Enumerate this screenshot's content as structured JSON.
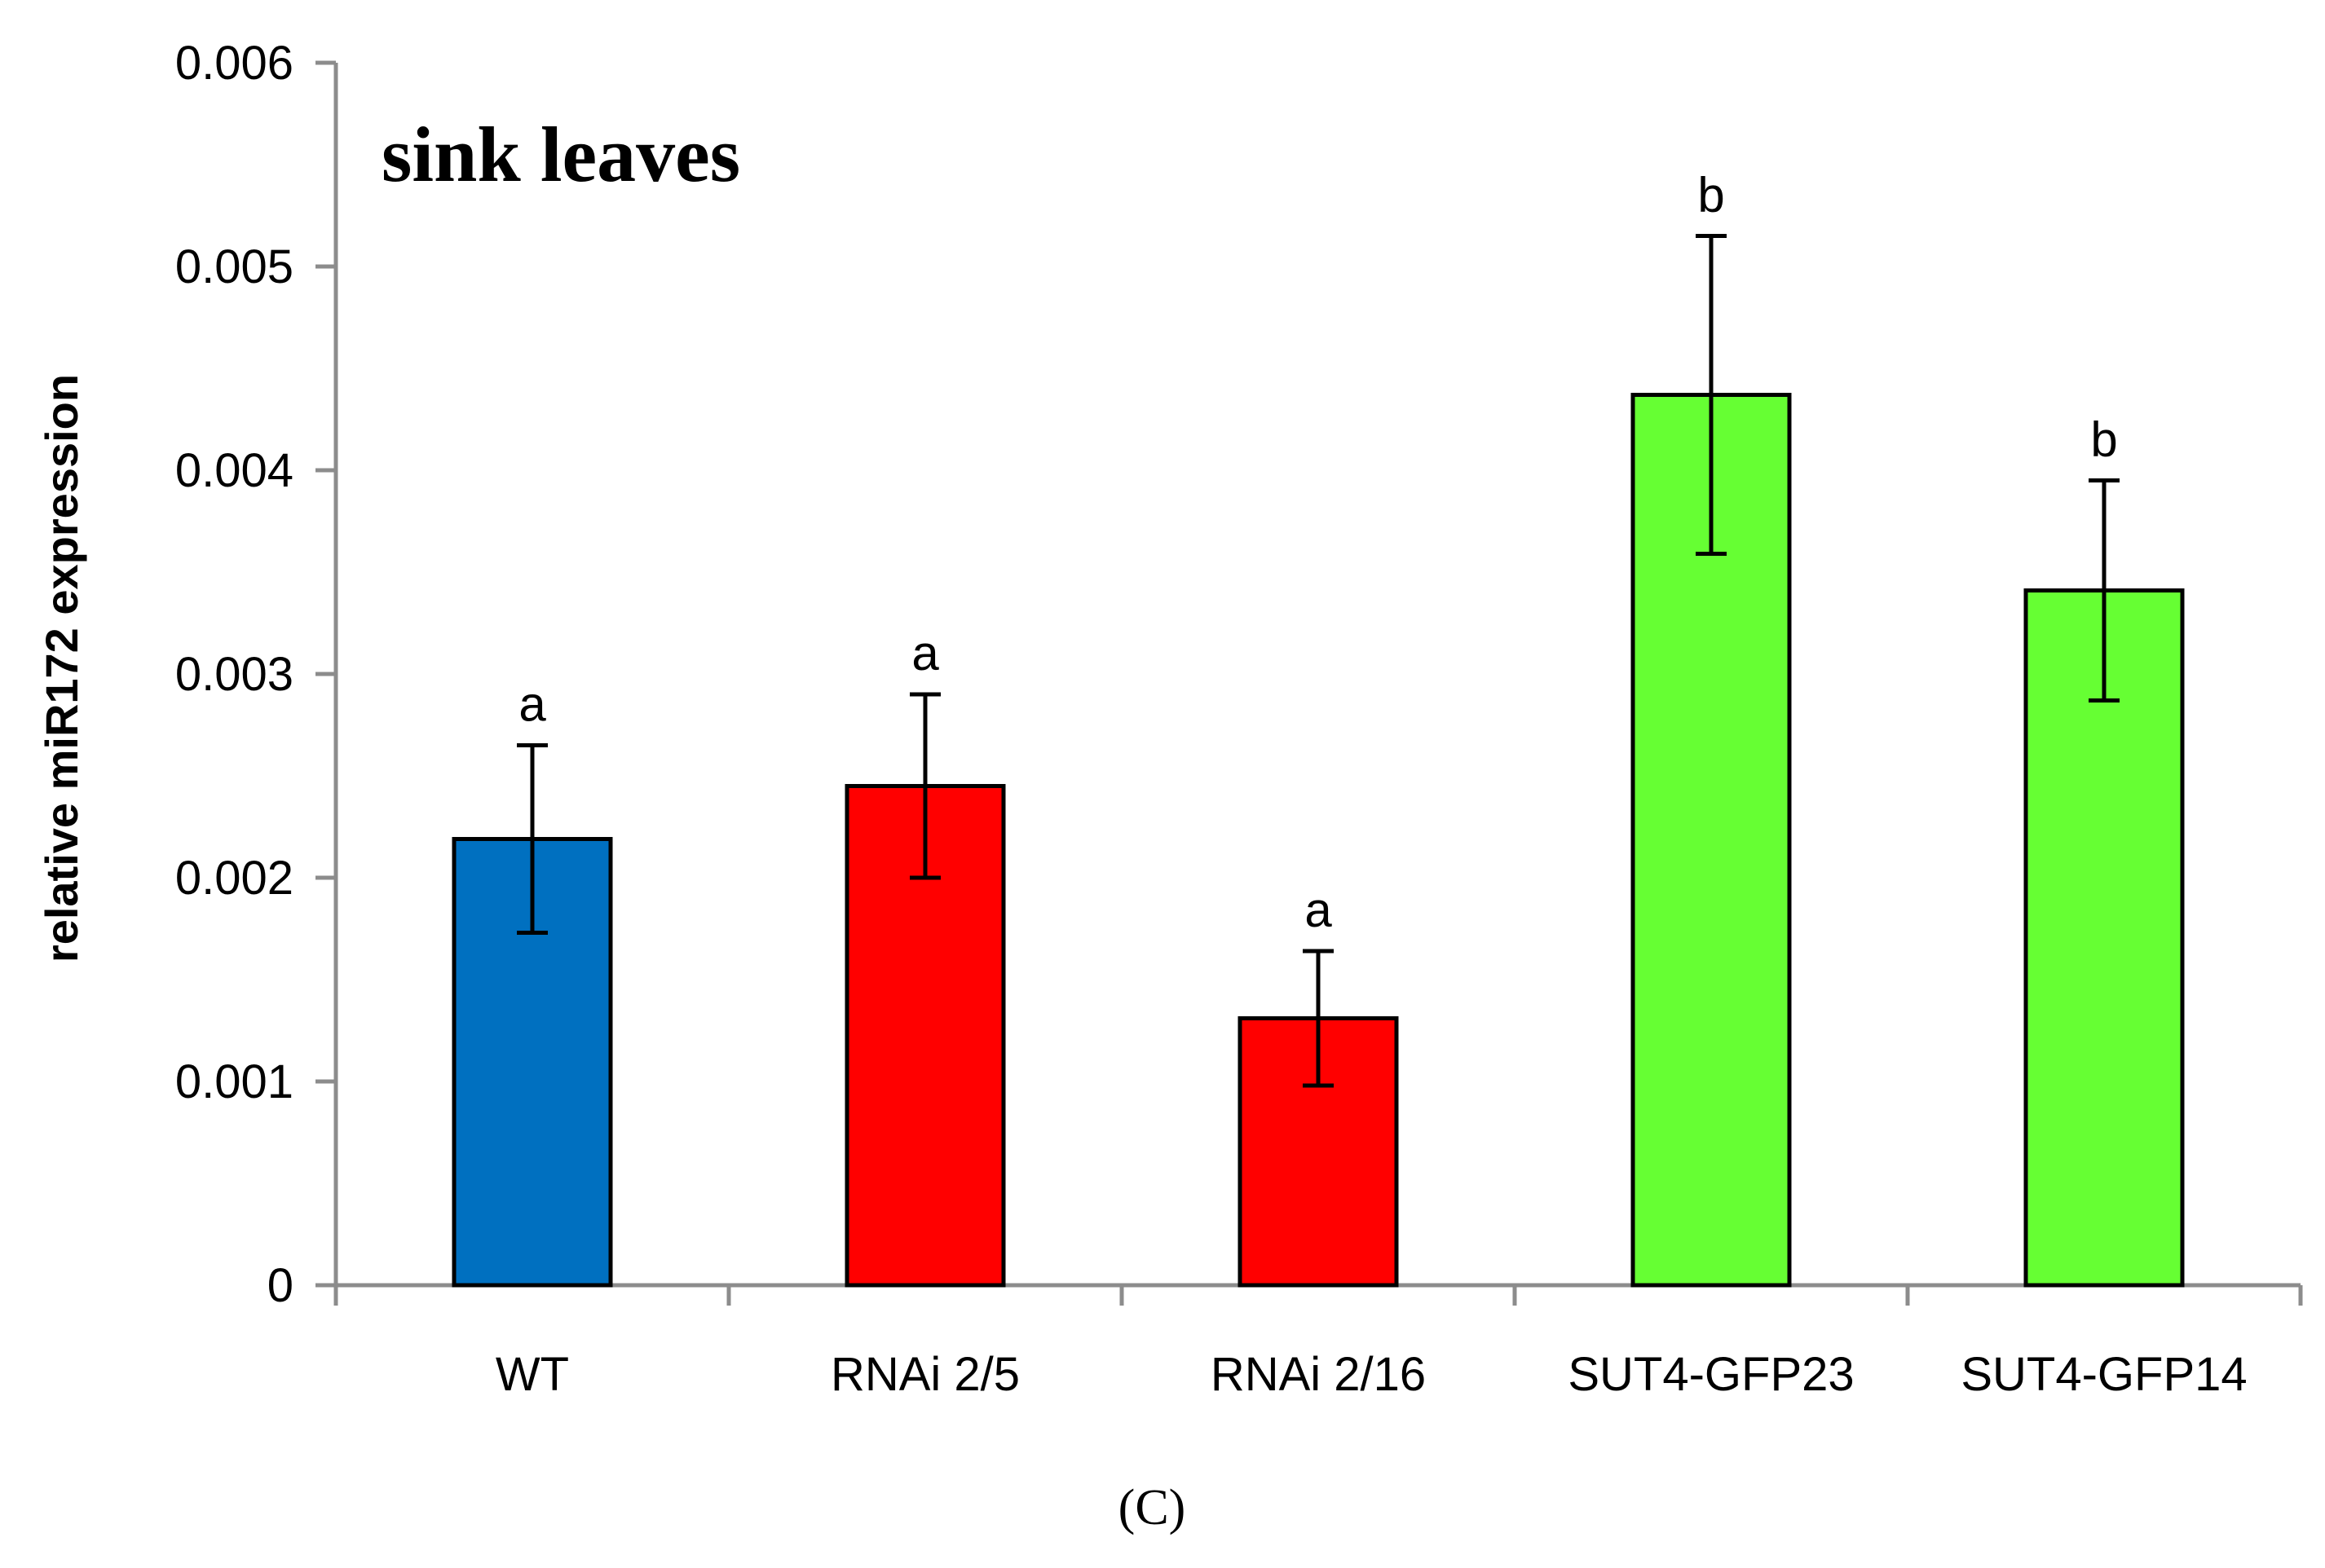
{
  "chart_data": {
    "type": "bar",
    "title": "sink leaves",
    "panel_label": "(C)",
    "xlabel": "",
    "ylabel": "relative miR172 expression",
    "ylim": [
      0,
      0.006
    ],
    "yticks": [
      "0",
      "0.001",
      "0.002",
      "0.003",
      "0.004",
      "0.005",
      "0.006"
    ],
    "ytick_values": [
      0,
      0.001,
      0.002,
      0.003,
      0.004,
      0.005,
      0.006
    ],
    "categories": [
      "WT",
      "RNAi 2/5",
      "RNAi 2/16",
      "SUT4-GFP23",
      "SUT4-GFP14"
    ],
    "values": [
      0.00219,
      0.00245,
      0.00131,
      0.00437,
      0.00341
    ],
    "errors": [
      0.00046,
      0.00045,
      0.00033,
      0.00078,
      0.00054
    ],
    "significance": [
      "a",
      "a",
      "a",
      "b",
      "b"
    ],
    "colors": [
      "#0070C0",
      "#FF0000",
      "#FF0000",
      "#66FF33",
      "#66FF33"
    ],
    "grid": false,
    "legend": "none"
  }
}
